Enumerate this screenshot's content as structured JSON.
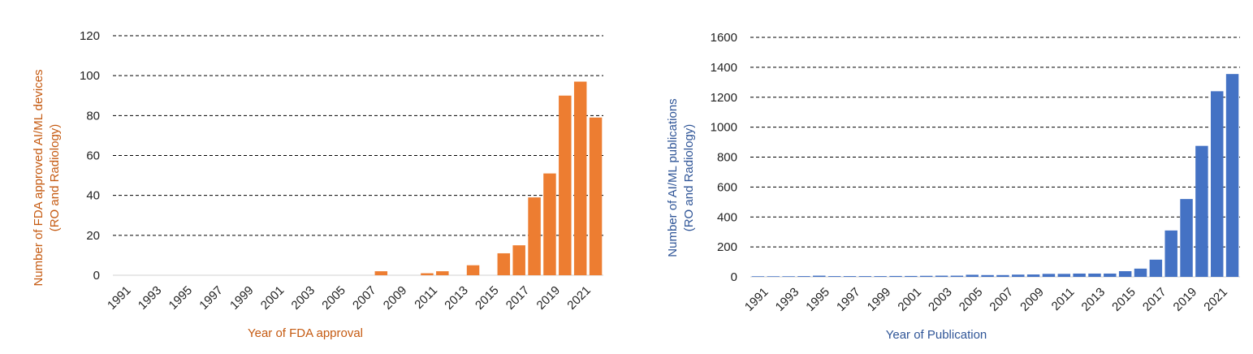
{
  "chart_data": [
    {
      "type": "bar",
      "color": "#ED7D31",
      "xlabel": "Year of FDA approval",
      "ylabel_line1": "Number of FDA approved AI/ML devices",
      "ylabel_line2": "(RO and Radiology)",
      "ylim": [
        0,
        120
      ],
      "yticks": [
        0,
        20,
        40,
        60,
        80,
        100,
        120
      ],
      "grid": true,
      "categories": [
        "1991",
        "1992",
        "1993",
        "1994",
        "1995",
        "1996",
        "1997",
        "1998",
        "1999",
        "2000",
        "2001",
        "2002",
        "2003",
        "2004",
        "2005",
        "2006",
        "2007",
        "2008",
        "2009",
        "2010",
        "2011",
        "2012",
        "2013",
        "2014",
        "2015",
        "2016",
        "2017",
        "2018",
        "2019",
        "2020",
        "2021",
        "2022"
      ],
      "tick_labels": [
        "1991",
        "1993",
        "1995",
        "1997",
        "1999",
        "2001",
        "2003",
        "2005",
        "2007",
        "2009",
        "2011",
        "2013",
        "2015",
        "2017",
        "2019",
        "2021"
      ],
      "values": [
        0,
        0,
        0,
        0,
        0,
        0,
        0,
        0,
        0,
        0,
        0,
        0,
        0,
        0,
        0,
        0,
        0,
        2,
        0,
        0,
        1,
        2,
        0,
        5,
        0,
        11,
        15,
        39,
        51,
        90,
        97,
        79
      ]
    },
    {
      "type": "bar",
      "color": "#4472C4",
      "xlabel": "Year of Publication",
      "ylabel_line1": "Number of AI/ML publications",
      "ylabel_line2": "(RO and Radiology)",
      "ylim": [
        0,
        1600
      ],
      "yticks": [
        0,
        200,
        400,
        600,
        800,
        1000,
        1200,
        1400,
        1600
      ],
      "grid": true,
      "categories": [
        "1991",
        "1992",
        "1993",
        "1994",
        "1995",
        "1996",
        "1997",
        "1998",
        "1999",
        "2000",
        "2001",
        "2002",
        "2003",
        "2004",
        "2005",
        "2006",
        "2007",
        "2008",
        "2009",
        "2010",
        "2011",
        "2012",
        "2013",
        "2014",
        "2015",
        "2016",
        "2017",
        "2018",
        "2019",
        "2020",
        "2021",
        "2022"
      ],
      "tick_labels": [
        "1991",
        "1993",
        "1995",
        "1997",
        "1999",
        "2001",
        "2003",
        "2005",
        "2007",
        "2009",
        "2011",
        "2013",
        "2015",
        "2017",
        "2019",
        "2021"
      ],
      "values": [
        4,
        4,
        4,
        5,
        8,
        5,
        5,
        5,
        5,
        6,
        6,
        7,
        8,
        8,
        14,
        12,
        12,
        15,
        16,
        20,
        20,
        22,
        22,
        22,
        38,
        55,
        115,
        310,
        520,
        875,
        1240,
        1355
      ]
    }
  ]
}
